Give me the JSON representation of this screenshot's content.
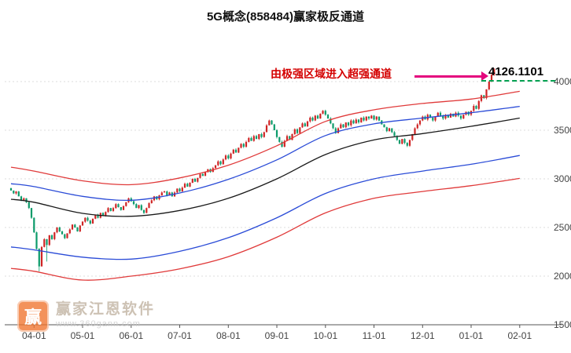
{
  "title": "5G概念(858484)赢家极反通道",
  "annotation": {
    "text": "由极强区域进入超强通道",
    "price_label": "4126.1101"
  },
  "watermark": {
    "brand": "赢家江恩软件",
    "url": "www.360gann.com",
    "logo_char": "赢"
  },
  "chart_data": {
    "type": "candlestick",
    "x_labels": [
      "04-01",
      "05-01",
      "06-01",
      "07-01",
      "08-01",
      "09-01",
      "10-01",
      "11-01",
      "12-01",
      "01-01",
      "02-01"
    ],
    "y_ticks": [
      4000,
      3500,
      3000,
      2500,
      2000,
      1500
    ],
    "grid_levels": [
      2000,
      2500,
      3000,
      3500,
      4000
    ],
    "ylim": [
      1500,
      4355
    ],
    "last_price": 4126.1101,
    "closes": [
      2880,
      2850,
      2870,
      2820,
      2780,
      2800,
      2760,
      2700,
      2600,
      2450,
      2280,
      2100,
      2300,
      2380,
      2320,
      2420,
      2380,
      2450,
      2500,
      2460,
      2430,
      2390,
      2440,
      2480,
      2530,
      2500,
      2460,
      2520,
      2560,
      2600,
      2570,
      2540,
      2590,
      2630,
      2600,
      2650,
      2620,
      2660,
      2700,
      2670,
      2700,
      2740,
      2710,
      2680,
      2720,
      2760,
      2800,
      2770,
      2740,
      2700,
      2730,
      2680,
      2650,
      2700,
      2750,
      2780,
      2820,
      2790,
      2830,
      2860,
      2870,
      2830,
      2860,
      2820,
      2860,
      2900,
      2870,
      2910,
      2950,
      2920,
      2960,
      3000,
      2970,
      3010,
      3050,
      3030,
      3070,
      3100,
      3070,
      3110,
      3140,
      3180,
      3150,
      3200,
      3240,
      3210,
      3260,
      3300,
      3270,
      3320,
      3360,
      3330,
      3380,
      3420,
      3390,
      3440,
      3410,
      3460,
      3430,
      3480,
      3550,
      3600,
      3560,
      3500,
      3430,
      3380,
      3330,
      3390,
      3440,
      3400,
      3460,
      3510,
      3470,
      3530,
      3570,
      3540,
      3590,
      3630,
      3600,
      3650,
      3620,
      3670,
      3700,
      3660,
      3620,
      3570,
      3520,
      3470,
      3520,
      3560,
      3530,
      3580,
      3550,
      3600,
      3570,
      3610,
      3580,
      3630,
      3600,
      3640,
      3620,
      3650,
      3610,
      3640,
      3600,
      3560,
      3530,
      3490,
      3520,
      3480,
      3440,
      3400,
      3360,
      3410,
      3370,
      3340,
      3400,
      3460,
      3520,
      3560,
      3600,
      3640,
      3610,
      3660,
      3630,
      3600,
      3640,
      3680,
      3650,
      3620,
      3660,
      3630,
      3670,
      3640,
      3680,
      3650,
      3620,
      3660,
      3690,
      3660,
      3700,
      3750,
      3720,
      3800,
      3860,
      3830,
      3920,
      4000,
      4070,
      4126
    ],
    "deep_wicks": {
      "11": 2050,
      "14": 2150
    },
    "lines": [
      {
        "name": "upper_red",
        "color": "#e03a3a",
        "values": [
          3120,
          3080,
          2980,
          2940,
          3010,
          3140,
          3340,
          3590,
          3710,
          3775,
          3820,
          3900
        ]
      },
      {
        "name": "upper_blue",
        "color": "#2a4bd7",
        "values": [
          2950,
          2920,
          2820,
          2780,
          2855,
          2995,
          3195,
          3445,
          3565,
          3625,
          3680,
          3745
        ]
      },
      {
        "name": "middle_black",
        "color": "#1a1a1a",
        "values": [
          2790,
          2760,
          2645,
          2615,
          2675,
          2800,
          3000,
          3250,
          3400,
          3465,
          3540,
          3625
        ]
      },
      {
        "name": "lower_blue",
        "color": "#2a4bd7",
        "values": [
          2300,
          2270,
          2195,
          2175,
          2255,
          2395,
          2600,
          2850,
          3000,
          3080,
          3150,
          3240
        ]
      },
      {
        "name": "lower_red",
        "color": "#e03a3a",
        "values": [
          2080,
          2050,
          1960,
          2000,
          2075,
          2200,
          2400,
          2650,
          2800,
          2870,
          2930,
          3005
        ]
      }
    ],
    "colors": {
      "up": "#cf2424",
      "down": "#0c9b6a",
      "arrow": "#e4067e",
      "annotation": "#d40000",
      "price_line": "#00a050",
      "grid": "#dcdcdc",
      "axis": "#555555",
      "label": "#444444"
    }
  }
}
